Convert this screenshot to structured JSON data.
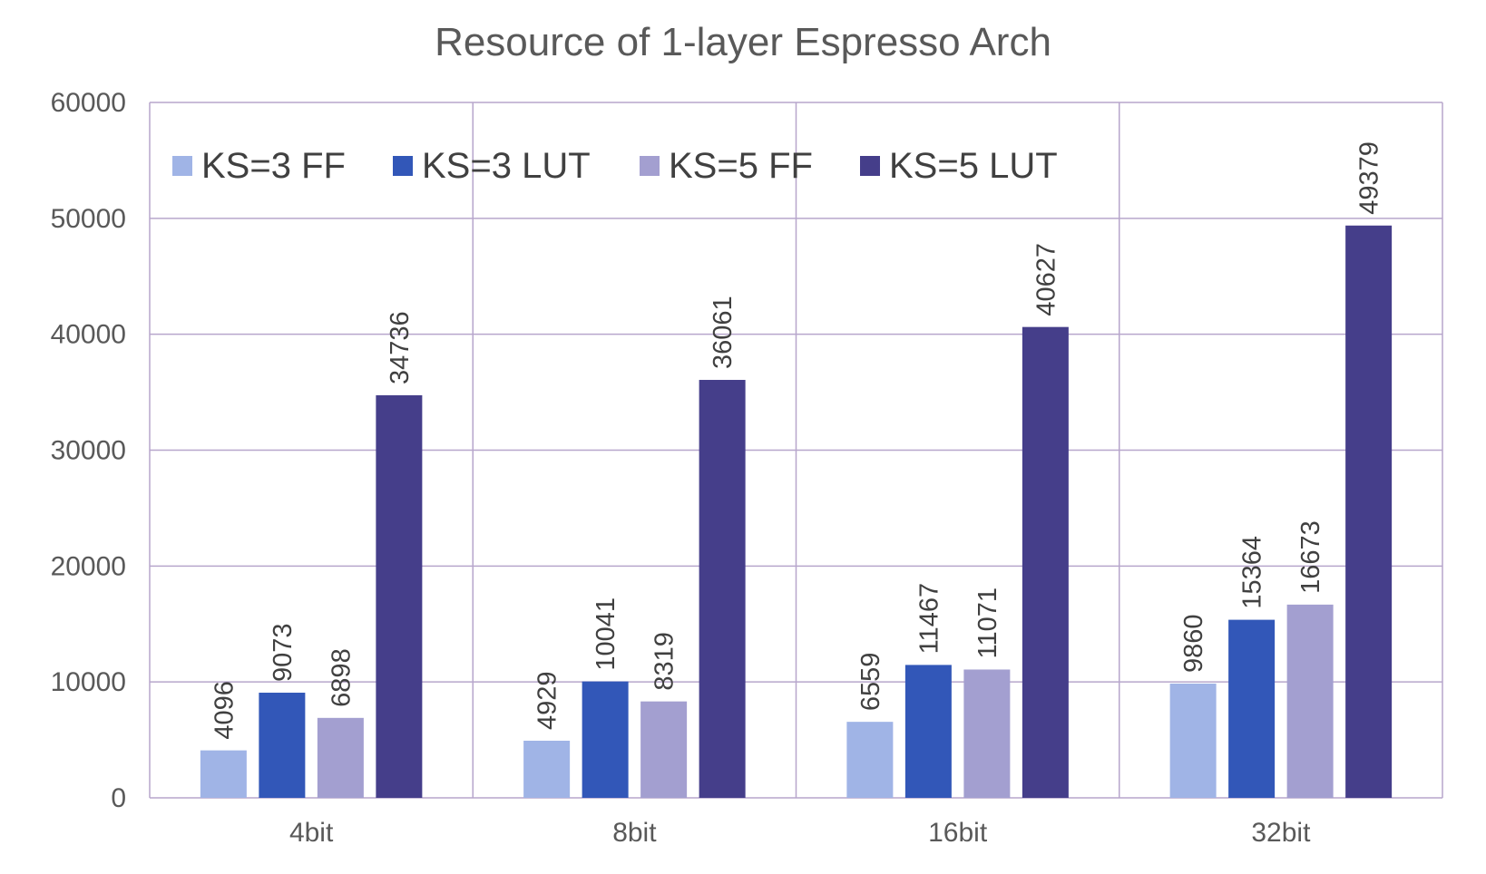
{
  "chart_data": {
    "type": "bar",
    "title": "Resource of 1-layer Espresso Arch",
    "xlabel": "",
    "ylabel": "",
    "categories": [
      "4bit",
      "8bit",
      "16bit",
      "32bit"
    ],
    "ylim": [
      0,
      60000
    ],
    "yticks": [
      "0",
      "10000",
      "20000",
      "30000",
      "40000",
      "50000",
      "60000"
    ],
    "grid": true,
    "legend_position": "top",
    "series": [
      {
        "name": "KS=3 FF",
        "color": "#a0b4e6",
        "values": [
          4096,
          4929,
          6559,
          9860
        ]
      },
      {
        "name": "KS=3 LUT",
        "color": "#3257b8",
        "values": [
          9073,
          10041,
          11467,
          15364
        ]
      },
      {
        "name": "KS=5 FF",
        "color": "#a39fd0",
        "values": [
          6898,
          8319,
          11071,
          16673
        ]
      },
      {
        "name": "KS=5 LUT",
        "color": "#453e8a",
        "values": [
          34736,
          36061,
          40627,
          49379
        ]
      }
    ],
    "grid_color": "#b7a6cc"
  }
}
